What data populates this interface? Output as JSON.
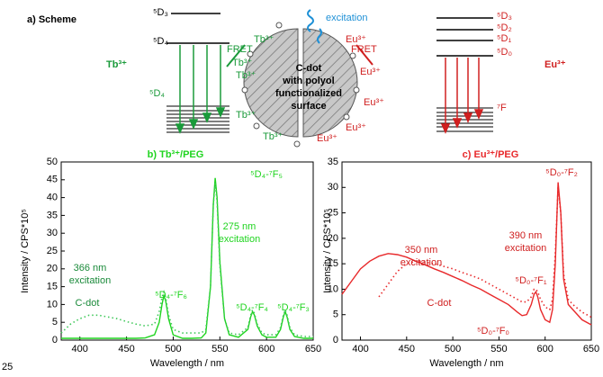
{
  "scheme": {
    "title": "a) Scheme",
    "tb_ion": "Tb³⁺",
    "eu_ion": "Eu³⁺",
    "tb_levels": [
      "⁵D₃",
      "⁵D₄",
      "⁵D₄"
    ],
    "eu_levels": [
      "⁵D₃",
      "⁵D₂",
      "⁵D₁",
      "⁵D₀",
      "⁷F"
    ],
    "center_labels": [
      "excitation",
      "FRET",
      "FRET",
      "C-dot",
      "with polyol",
      "functionalized",
      "surface"
    ],
    "tb_sites": [
      "Tb³⁺",
      "Tb³⁺",
      "Tb³⁺",
      "Tb³⁺",
      "Tb³⁺"
    ],
    "eu_sites": [
      "Eu³⁺",
      "Eu³⁺",
      "Eu³⁺",
      "Eu³⁺",
      "Eu³⁺"
    ],
    "page_number": "25"
  },
  "chart_data": [
    {
      "type": "line",
      "title": "b) Tb³⁺/PEG",
      "xlabel": "Wavelength / nm",
      "ylabel": "Intensity / CPS*10⁵",
      "x": [
        380,
        390,
        400,
        410,
        420,
        430,
        440,
        450,
        460,
        470,
        480,
        485,
        488,
        490,
        492,
        495,
        500,
        510,
        520,
        530,
        535,
        540,
        543,
        545,
        547,
        550,
        555,
        560,
        570,
        580,
        583,
        585,
        587,
        590,
        595,
        600,
        610,
        615,
        618,
        620,
        622,
        625,
        630,
        640,
        650
      ],
      "series": [
        {
          "color": "#1fd41f",
          "style": "solid",
          "values": [
            0.5,
            0.5,
            0.5,
            0.5,
            0.5,
            0.5,
            0.5,
            0.5,
            0.5,
            0.6,
            1.5,
            5,
            10,
            12.5,
            11,
            6,
            1.5,
            0.5,
            0.5,
            0.6,
            2,
            15,
            38,
            45.5,
            40,
            22,
            6,
            1.5,
            0.8,
            3,
            6.5,
            8,
            7,
            4,
            1.5,
            0.8,
            0.8,
            3,
            6.5,
            8,
            6.5,
            3,
            1,
            0.5,
            0.5
          ]
        },
        {
          "color": "#3fc85a",
          "style": "dotted",
          "values": [
            2,
            4.5,
            6,
            7,
            7,
            6.5,
            6,
            5.2,
            4.5,
            4,
            4.5,
            8,
            12,
            13.5,
            12,
            7,
            3,
            2,
            2,
            2,
            3,
            15,
            38,
            44,
            39,
            21,
            6,
            2,
            1.5,
            3.5,
            7,
            8.5,
            7.5,
            4.5,
            2,
            1.5,
            1.5,
            3.5,
            7,
            8.5,
            7,
            3.5,
            1.5,
            1,
            1
          ]
        }
      ],
      "annotations": [
        "275 nm",
        "excitation",
        "366 nm",
        "excitation",
        "C-dot",
        "⁵D₄-⁷F₅",
        "⁵D₄-⁷F₆",
        "⁵D₄-⁷F₄",
        "⁵D₄-⁷F₃"
      ],
      "xlim": [
        380,
        650
      ],
      "xticks": [
        400,
        450,
        500,
        550,
        600,
        650
      ],
      "ylim": [
        0,
        50
      ],
      "yticks": [
        0,
        5,
        10,
        15,
        20,
        25,
        30,
        35,
        40,
        45,
        50
      ]
    },
    {
      "type": "line",
      "title": "c) Eu³⁺/PEG",
      "xlabel": "Wavelength / nm",
      "ylabel": "Intensity / CPS*10⁵",
      "x": [
        380,
        390,
        400,
        410,
        420,
        430,
        440,
        450,
        460,
        470,
        480,
        490,
        500,
        510,
        520,
        530,
        540,
        550,
        560,
        570,
        575,
        580,
        585,
        588,
        590,
        592,
        595,
        600,
        605,
        608,
        611,
        614,
        617,
        620,
        625,
        630,
        640,
        650
      ],
      "series": [
        {
          "color": "#e8292b",
          "style": "solid",
          "values": [
            9,
            11.5,
            14,
            15.5,
            16.5,
            17,
            16.8,
            16.3,
            15.5,
            14.8,
            14,
            13.3,
            12.5,
            11.7,
            10.8,
            10,
            9,
            8,
            7,
            5.5,
            4.8,
            5,
            7,
            9,
            9.5,
            8.5,
            6,
            4,
            3.5,
            6,
            15,
            31,
            25,
            12,
            7,
            6,
            4,
            3
          ]
        },
        {
          "color": "#e8292b",
          "style": "dotted",
          "values": [
            null,
            null,
            null,
            null,
            8.5,
            11,
            13.5,
            15,
            15.5,
            15.3,
            15,
            14.5,
            14,
            13.3,
            12.7,
            12,
            11,
            10,
            9,
            8,
            7.5,
            7.5,
            8.5,
            10,
            10,
            9.5,
            8,
            6.5,
            6,
            8,
            17,
            30,
            25,
            13,
            8,
            7,
            5.5,
            4.5
          ]
        }
      ],
      "annotations": [
        "350 nm",
        "excitation",
        "390 nm",
        "excitation",
        "C-dot",
        "⁵D₀-⁷F₂",
        "⁵D₀-⁷F₁",
        "⁵D₀-⁷F₀"
      ],
      "xlim": [
        380,
        650
      ],
      "xticks": [
        400,
        450,
        500,
        550,
        600,
        650
      ],
      "ylim": [
        0,
        35
      ],
      "yticks": [
        0,
        5,
        10,
        15,
        20,
        25,
        30,
        35
      ]
    }
  ]
}
